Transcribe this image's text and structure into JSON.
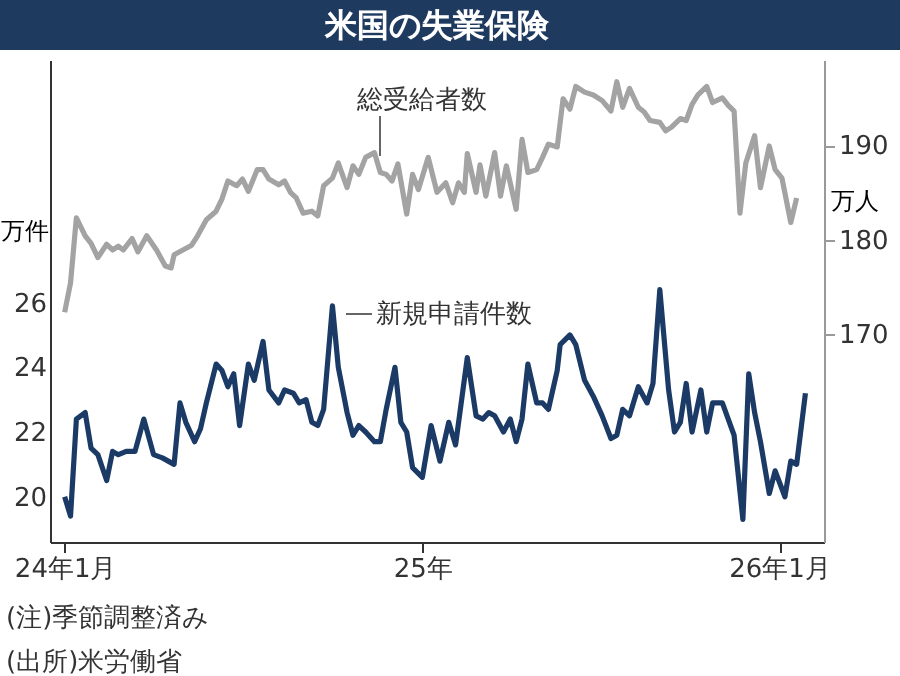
{
  "chart_data": {
    "type": "line",
    "title": "米国の失業保険",
    "xlim": [
      "2023-12-17",
      "2026-02-16"
    ],
    "xticks": [
      {
        "value": "2024-01-01",
        "label": "24年1月"
      },
      {
        "value": "2025-01-01",
        "label": "25年"
      },
      {
        "value": "2026-01-01",
        "label": "26年1月"
      }
    ],
    "ylabel": "万件",
    "y2label": "万人",
    "ylim": [
      18.6,
      33.5
    ],
    "yticks": [
      20,
      22,
      24,
      26
    ],
    "y2lim": [
      148,
      199
    ],
    "y2ticks": [
      170,
      180,
      190
    ],
    "grid": false,
    "legend": false,
    "marker": "none",
    "line_style": "solid",
    "annotations": [
      "(注)季節調整済み",
      "(出所)米労働省"
    ],
    "series": [
      {
        "name": "総受給者数",
        "color": "#a3a3a3",
        "axis": "y2",
        "x": [
          "2024-01-01",
          "2024-01-07",
          "2024-01-13",
          "2024-01-22",
          "2024-01-28",
          "2024-02-04",
          "2024-02-13",
          "2024-02-19",
          "2024-02-25",
          "2024-03-01",
          "2024-03-10",
          "2024-03-16",
          "2024-03-25",
          "2024-04-04",
          "2024-04-13",
          "2024-04-19",
          "2024-04-22",
          "2024-05-01",
          "2024-05-10",
          "2024-05-16",
          "2024-05-25",
          "2024-06-04",
          "2024-06-10",
          "2024-06-16",
          "2024-06-25",
          "2024-07-01",
          "2024-07-07",
          "2024-07-16",
          "2024-07-22",
          "2024-07-28",
          "2024-08-07",
          "2024-08-13",
          "2024-08-19",
          "2024-08-25",
          "2024-09-01",
          "2024-09-10",
          "2024-09-16",
          "2024-09-22",
          "2024-10-01",
          "2024-10-07",
          "2024-10-16",
          "2024-10-22",
          "2024-10-28",
          "2024-11-04",
          "2024-11-13",
          "2024-11-19",
          "2024-11-25",
          "2024-12-01",
          "2024-12-07",
          "2024-12-16",
          "2024-12-22",
          "2024-12-28",
          "2025-01-07",
          "2025-01-16",
          "2025-01-25",
          "2025-02-01",
          "2025-02-07",
          "2025-02-13",
          "2025-02-16",
          "2025-02-25",
          "2025-03-01",
          "2025-03-07",
          "2025-03-16",
          "2025-03-22",
          "2025-03-28",
          "2025-04-07",
          "2025-04-13",
          "2025-04-19",
          "2025-04-28",
          "2025-05-04",
          "2025-05-10",
          "2025-05-19",
          "2025-05-25",
          "2025-06-01",
          "2025-06-07",
          "2025-06-16",
          "2025-06-25",
          "2025-07-04",
          "2025-07-13",
          "2025-07-19",
          "2025-07-25",
          "2025-08-01",
          "2025-08-10",
          "2025-08-16",
          "2025-08-22",
          "2025-09-01",
          "2025-09-07",
          "2025-09-13",
          "2025-09-22",
          "2025-09-28",
          "2025-10-04",
          "2025-10-10",
          "2025-10-19",
          "2025-10-25",
          "2025-11-04",
          "2025-11-10",
          "2025-11-16",
          "2025-11-22",
          "2025-11-28",
          "2025-12-07",
          "2025-12-13",
          "2025-12-22",
          "2025-12-28",
          "2026-01-04",
          "2026-01-13",
          "2026-01-19"
        ],
        "values": [
          172.3,
          175.4,
          182.3,
          180.4,
          179.6,
          178.1,
          179.5,
          178.9,
          179.3,
          178.9,
          180.1,
          178.7,
          180.4,
          178.9,
          177.2,
          177.0,
          178.4,
          178.9,
          179.4,
          180.4,
          182.1,
          183.0,
          184.3,
          186.2,
          185.7,
          186.4,
          185.1,
          187.4,
          187.4,
          186.4,
          185.8,
          186.2,
          185.0,
          184.4,
          182.8,
          183.0,
          182.5,
          185.7,
          186.5,
          188.1,
          185.5,
          187.8,
          186.9,
          188.7,
          189.2,
          187.1,
          186.9,
          186.2,
          188.0,
          182.7,
          186.9,
          185.3,
          188.7,
          185.0,
          186.0,
          183.9,
          186.0,
          185.0,
          189.1,
          185.0,
          187.9,
          184.6,
          189.2,
          184.6,
          187.8,
          183.2,
          190.6,
          187.1,
          187.4,
          188.7,
          190.1,
          189.8,
          194.9,
          193.8,
          196.2,
          195.6,
          195.3,
          194.7,
          193.6,
          196.7,
          194.0,
          196.0,
          194.0,
          193.5,
          192.6,
          192.4,
          191.5,
          191.9,
          192.8,
          192.6,
          194.3,
          195.3,
          196.2,
          194.5,
          195.0,
          194.2,
          193.6,
          182.8,
          188.1,
          191.0,
          185.5,
          189.9,
          187.4,
          186.5,
          181.8,
          184.4
        ]
      },
      {
        "name": "新規申請件数",
        "color": "#1b3b66",
        "x": [
          "2024-01-01",
          "2024-01-07",
          "2024-01-13",
          "2024-01-22",
          "2024-01-28",
          "2024-02-04",
          "2024-02-13",
          "2024-02-19",
          "2024-02-25",
          "2024-03-04",
          "2024-03-13",
          "2024-03-22",
          "2024-04-01",
          "2024-04-10",
          "2024-04-16",
          "2024-04-22",
          "2024-04-28",
          "2024-05-04",
          "2024-05-13",
          "2024-05-19",
          "2024-05-25",
          "2024-06-04",
          "2024-06-10",
          "2024-06-16",
          "2024-06-22",
          "2024-06-28",
          "2024-07-07",
          "2024-07-13",
          "2024-07-22",
          "2024-07-28",
          "2024-08-07",
          "2024-08-13",
          "2024-08-22",
          "2024-08-28",
          "2024-09-04",
          "2024-09-10",
          "2024-09-16",
          "2024-09-22",
          "2024-10-01",
          "2024-10-07",
          "2024-10-16",
          "2024-10-22",
          "2024-10-28",
          "2024-11-04",
          "2024-11-13",
          "2024-11-19",
          "2024-11-25",
          "2024-12-04",
          "2024-12-10",
          "2024-12-16",
          "2024-12-22",
          "2025-01-01",
          "2025-01-10",
          "2025-01-19",
          "2025-01-28",
          "2025-02-04",
          "2025-02-16",
          "2025-02-25",
          "2025-03-04",
          "2025-03-10",
          "2025-03-16",
          "2025-03-25",
          "2025-04-01",
          "2025-04-07",
          "2025-04-13",
          "2025-04-19",
          "2025-04-28",
          "2025-05-04",
          "2025-05-10",
          "2025-05-19",
          "2025-05-22",
          "2025-06-01",
          "2025-06-07",
          "2025-06-16",
          "2025-06-25",
          "2025-07-04",
          "2025-07-13",
          "2025-07-19",
          "2025-07-25",
          "2025-08-01",
          "2025-08-10",
          "2025-08-19",
          "2025-08-25",
          "2025-09-01",
          "2025-09-10",
          "2025-09-16",
          "2025-09-22",
          "2025-09-28",
          "2025-10-04",
          "2025-10-13",
          "2025-10-19",
          "2025-10-25",
          "2025-11-04",
          "2025-11-10",
          "2025-11-16",
          "2025-11-25",
          "2025-12-01",
          "2025-12-07",
          "2025-12-13",
          "2025-12-22",
          "2025-12-28",
          "2026-01-07",
          "2026-01-13",
          "2026-01-19",
          "2026-01-28"
        ],
        "values": [
          20.0,
          19.4,
          22.4,
          22.6,
          21.5,
          21.3,
          20.5,
          21.4,
          21.3,
          21.4,
          21.4,
          22.4,
          21.3,
          21.2,
          21.1,
          21.0,
          22.9,
          22.3,
          21.7,
          22.1,
          22.9,
          24.1,
          23.9,
          23.4,
          23.8,
          22.2,
          24.1,
          23.6,
          24.8,
          23.3,
          22.9,
          23.3,
          23.2,
          22.9,
          23.0,
          22.3,
          22.2,
          22.7,
          25.9,
          24.0,
          22.6,
          21.9,
          22.2,
          22.0,
          21.7,
          21.7,
          22.7,
          24.0,
          22.3,
          22.0,
          20.9,
          20.6,
          22.2,
          21.1,
          22.3,
          21.6,
          24.3,
          22.5,
          22.4,
          22.6,
          22.5,
          22.0,
          22.4,
          21.7,
          22.4,
          24.1,
          22.9,
          22.9,
          22.7,
          23.9,
          24.7,
          25.0,
          24.7,
          23.6,
          23.1,
          22.5,
          21.8,
          21.9,
          22.7,
          22.5,
          23.4,
          22.9,
          23.5,
          26.4,
          23.3,
          22.0,
          22.3,
          23.5,
          22.0,
          23.3,
          22.0,
          22.9,
          22.9,
          22.4,
          21.9,
          19.3,
          23.8,
          22.6,
          21.7,
          20.1,
          20.8,
          20.0,
          21.1,
          21.0,
          23.2
        ]
      }
    ]
  }
}
